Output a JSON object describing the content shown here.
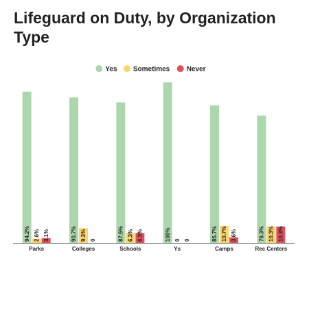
{
  "chart_data": {
    "type": "bar",
    "title": "Lifeguard on Duty, by Organization Type",
    "categories": [
      "Parks",
      "Colleges",
      "Schools",
      "Ys",
      "Camps",
      "Rec Centers"
    ],
    "series": [
      {
        "name": "Yes",
        "color": "#acd6ac",
        "values": [
          94.2,
          90.7,
          87.5,
          100,
          85.7,
          79.3
        ],
        "value_labels": [
          "94.2%",
          "90.7%",
          "87.5%",
          "100%",
          "85.7%",
          "79.3%"
        ]
      },
      {
        "name": "Sometimes",
        "color": "#fdd46b",
        "values": [
          2.6,
          9.3,
          6.3,
          0,
          10.7,
          10.3
        ],
        "value_labels": [
          "2.6%",
          "9.3%",
          "6.3%",
          "0",
          "10.7%",
          "10.3%"
        ]
      },
      {
        "name": "Never",
        "color": "#e0505c",
        "values": [
          3.1,
          0,
          6.3,
          0,
          3.6,
          10.3
        ],
        "value_labels": [
          "3.1%",
          "0",
          "6.3%",
          "0",
          "3.6%",
          "10.3%"
        ]
      }
    ],
    "legend": "top"
  }
}
